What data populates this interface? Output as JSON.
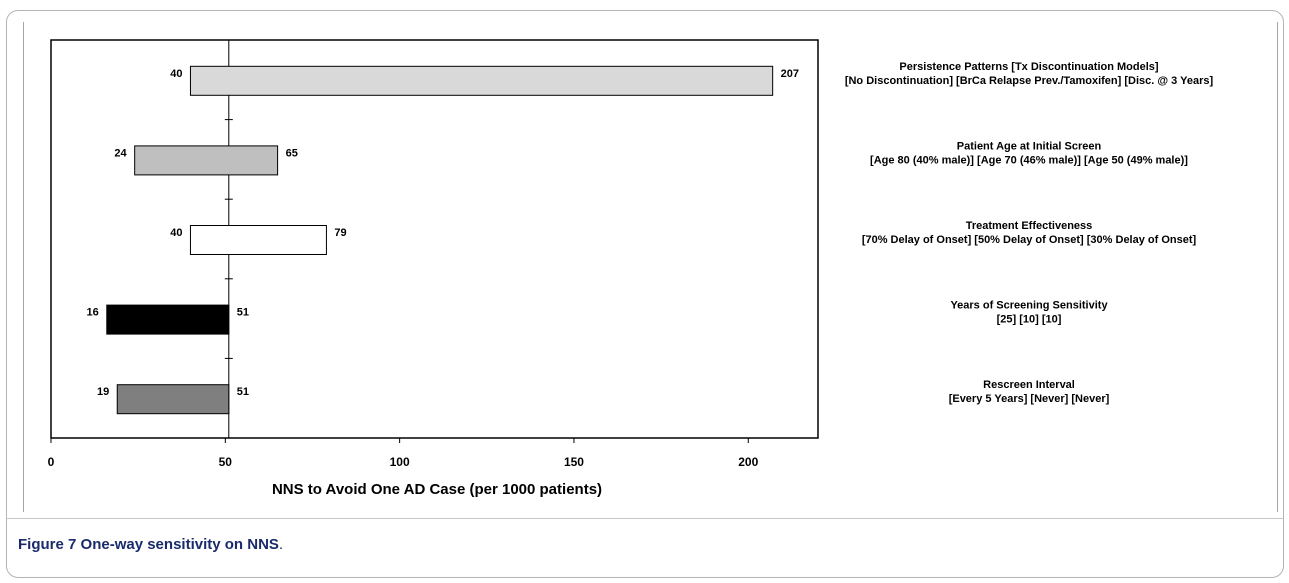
{
  "figure": {
    "label": "Figure 7",
    "caption": "One-way sensitivity on NNS",
    "caption_end": "."
  },
  "chart_data": {
    "type": "bar",
    "orientation": "horizontal",
    "chart_style": "tornado",
    "baseline": 51,
    "xlabel": "NNS to Avoid One AD Case (per 1000 patients)",
    "ylabel": "",
    "xlim": [
      0,
      220
    ],
    "xticks": [
      0,
      50,
      100,
      150,
      200
    ],
    "grid": false,
    "legend": "none",
    "rows": [
      {
        "title": "Persistence Patterns [Tx Discontinuation Models]",
        "detail": "[No Discontinuation]  [BrCa Relapse Prev./Tamoxifen]  [Disc. @ 3 Years]",
        "low": 40,
        "high": 207,
        "low_label": "40",
        "high_label": "207",
        "color": "#d9d9d9"
      },
      {
        "title": "Patient Age at Initial Screen",
        "detail": "[Age 80 (40% male)]  [Age 70 (46% male)]  [Age 50 (49% male)]",
        "low": 24,
        "high": 65,
        "low_label": "24",
        "high_label": "65",
        "color": "#bfbfbf"
      },
      {
        "title": "Treatment Effectiveness",
        "detail": "[70% Delay of Onset]  [50% Delay of Onset]  [30% Delay of Onset]",
        "low": 40,
        "high": 79,
        "low_label": "40",
        "high_label": "79",
        "color": "#ffffff"
      },
      {
        "title": "Years of Screening Sensitivity",
        "detail": "[25]  [10]  [10]",
        "low": 16,
        "high": 51,
        "low_label": "16",
        "high_label": "51",
        "color": "#000000"
      },
      {
        "title": "Rescreen Interval",
        "detail": "[Every 5 Years]  [Never]  [Never]",
        "low": 19,
        "high": 51,
        "low_label": "19",
        "high_label": "51",
        "color": "#7f7f7f"
      }
    ]
  }
}
